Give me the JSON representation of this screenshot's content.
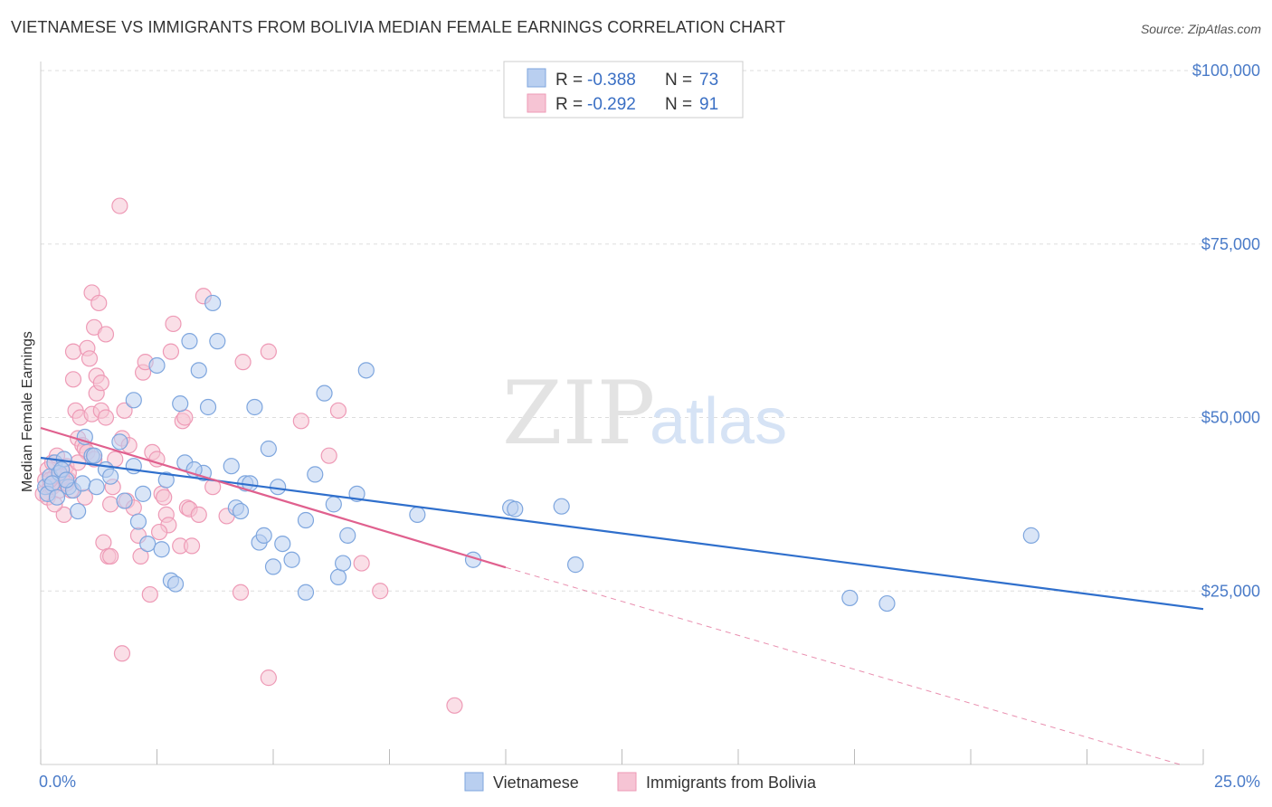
{
  "header": {
    "title": "VIETNAMESE VS IMMIGRANTS FROM BOLIVIA MEDIAN FEMALE EARNINGS CORRELATION CHART",
    "source": "Source: ZipAtlas.com"
  },
  "watermark": {
    "zip": "ZIP",
    "atlas": "atlas"
  },
  "stats_box": {
    "rows": [
      {
        "r_label": "R =",
        "r_value": "-0.388",
        "n_label": "N =",
        "n_value": "73"
      },
      {
        "r_label": "R =",
        "r_value": "-0.292",
        "n_label": "N =",
        "n_value": "91"
      }
    ]
  },
  "colors": {
    "blue_fill": "#b9cff0",
    "blue_stroke": "#7ea6de",
    "blue_line": "#2f6fcc",
    "pink_fill": "#f6c4d4",
    "pink_stroke": "#ee9ab6",
    "pink_line": "#e0608e",
    "accent_text": "#3a6fc4",
    "grid": "#dddddd"
  },
  "chart_data": {
    "type": "scatter",
    "title": "VIETNAMESE VS IMMIGRANTS FROM BOLIVIA MEDIAN FEMALE EARNINGS CORRELATION CHART",
    "xlabel": "",
    "ylabel": "Median Female Earnings",
    "xlim": [
      0,
      25
    ],
    "ylim": [
      0,
      105000
    ],
    "x_tick_labels": [
      "0.0%",
      "25.0%"
    ],
    "y_ticks": [
      25000,
      50000,
      75000,
      100000
    ],
    "y_tick_labels": [
      "$25,000",
      "$50,000",
      "$75,000",
      "$100,000"
    ],
    "grid": true,
    "legend_position": "bottom-center",
    "series": [
      {
        "name": "Vietnamese",
        "color": "#7ea6de",
        "r": -0.388,
        "n": 73,
        "trend": {
          "x": [
            0,
            25
          ],
          "y": [
            44200,
            22400
          ]
        },
        "points": [
          [
            0.1,
            40000
          ],
          [
            0.15,
            39000
          ],
          [
            0.2,
            41500
          ],
          [
            0.3,
            43500
          ],
          [
            0.4,
            42000
          ],
          [
            0.5,
            44000
          ],
          [
            0.6,
            40000
          ],
          [
            0.7,
            39500
          ],
          [
            0.8,
            36500
          ],
          [
            0.9,
            40500
          ],
          [
            0.95,
            47200
          ],
          [
            1.1,
            44500
          ],
          [
            1.15,
            44500
          ],
          [
            1.4,
            42500
          ],
          [
            1.7,
            46500
          ],
          [
            1.8,
            38000
          ],
          [
            2.0,
            43000
          ],
          [
            2.0,
            52500
          ],
          [
            2.1,
            35000
          ],
          [
            2.3,
            31800
          ],
          [
            2.5,
            57500
          ],
          [
            2.6,
            31000
          ],
          [
            2.7,
            41000
          ],
          [
            2.8,
            26500
          ],
          [
            2.9,
            26000
          ],
          [
            3.0,
            52000
          ],
          [
            3.1,
            43500
          ],
          [
            3.2,
            61000
          ],
          [
            3.4,
            56800
          ],
          [
            3.5,
            42000
          ],
          [
            3.6,
            51500
          ],
          [
            3.7,
            66500
          ],
          [
            3.8,
            61000
          ],
          [
            4.1,
            43000
          ],
          [
            4.2,
            37000
          ],
          [
            4.3,
            36500
          ],
          [
            4.4,
            40500
          ],
          [
            4.5,
            40500
          ],
          [
            4.6,
            51500
          ],
          [
            4.7,
            32000
          ],
          [
            4.8,
            33000
          ],
          [
            4.9,
            45500
          ],
          [
            5.0,
            28500
          ],
          [
            5.1,
            40000
          ],
          [
            5.2,
            31800
          ],
          [
            5.4,
            29500
          ],
          [
            5.7,
            24800
          ],
          [
            5.7,
            35200
          ],
          [
            5.9,
            41800
          ],
          [
            6.1,
            53500
          ],
          [
            6.3,
            37500
          ],
          [
            6.4,
            27000
          ],
          [
            6.5,
            29000
          ],
          [
            6.6,
            33000
          ],
          [
            6.8,
            39000
          ],
          [
            7.0,
            56800
          ],
          [
            8.1,
            36000
          ],
          [
            9.3,
            29500
          ],
          [
            10.1,
            37000
          ],
          [
            10.2,
            36800
          ],
          [
            11.2,
            37200
          ],
          [
            11.5,
            28800
          ],
          [
            17.4,
            24000
          ],
          [
            18.2,
            23200
          ],
          [
            21.3,
            33000
          ],
          [
            0.25,
            40500
          ],
          [
            0.45,
            42500
          ],
          [
            0.55,
            41000
          ],
          [
            1.2,
            40000
          ],
          [
            1.5,
            41500
          ],
          [
            2.2,
            39000
          ],
          [
            3.3,
            42500
          ],
          [
            0.35,
            38500
          ]
        ]
      },
      {
        "name": "Immigrants from Bolivia",
        "color": "#ee9ab6",
        "r": -0.292,
        "n": 91,
        "trend": {
          "x": [
            0,
            10
          ],
          "y": [
            48500,
            28400
          ]
        },
        "trend_ext": {
          "x": [
            10,
            24.5
          ],
          "y": [
            28400,
            0
          ]
        },
        "points": [
          [
            0.05,
            39000
          ],
          [
            0.1,
            41000
          ],
          [
            0.15,
            42500
          ],
          [
            0.2,
            40000
          ],
          [
            0.25,
            43500
          ],
          [
            0.3,
            41500
          ],
          [
            0.35,
            44500
          ],
          [
            0.4,
            42000
          ],
          [
            0.45,
            40500
          ],
          [
            0.5,
            36000
          ],
          [
            0.55,
            43000
          ],
          [
            0.6,
            41000
          ],
          [
            0.65,
            39500
          ],
          [
            0.7,
            55500
          ],
          [
            0.7,
            59500
          ],
          [
            0.75,
            51000
          ],
          [
            0.8,
            47000
          ],
          [
            0.85,
            50000
          ],
          [
            0.9,
            46000
          ],
          [
            0.95,
            45500
          ],
          [
            1.0,
            45000
          ],
          [
            1.0,
            60000
          ],
          [
            1.05,
            58500
          ],
          [
            1.1,
            50500
          ],
          [
            1.1,
            68000
          ],
          [
            1.15,
            63000
          ],
          [
            1.2,
            56000
          ],
          [
            1.2,
            53500
          ],
          [
            1.25,
            66500
          ],
          [
            1.3,
            55000
          ],
          [
            1.3,
            51000
          ],
          [
            1.35,
            32000
          ],
          [
            1.4,
            62000
          ],
          [
            1.45,
            30000
          ],
          [
            1.5,
            37500
          ],
          [
            1.55,
            40000
          ],
          [
            1.6,
            44000
          ],
          [
            1.7,
            80500
          ],
          [
            1.75,
            47000
          ],
          [
            1.8,
            51000
          ],
          [
            1.85,
            38000
          ],
          [
            1.9,
            46000
          ],
          [
            2.0,
            37000
          ],
          [
            2.1,
            33000
          ],
          [
            2.15,
            30000
          ],
          [
            2.2,
            56500
          ],
          [
            2.25,
            58000
          ],
          [
            2.35,
            24500
          ],
          [
            2.4,
            45000
          ],
          [
            2.5,
            44000
          ],
          [
            2.6,
            39000
          ],
          [
            2.65,
            38500
          ],
          [
            2.7,
            36000
          ],
          [
            2.75,
            34500
          ],
          [
            2.8,
            59500
          ],
          [
            2.85,
            63500
          ],
          [
            3.0,
            31500
          ],
          [
            3.05,
            49500
          ],
          [
            3.1,
            50000
          ],
          [
            3.15,
            37000
          ],
          [
            3.2,
            36800
          ],
          [
            3.25,
            31500
          ],
          [
            3.4,
            36000
          ],
          [
            3.5,
            67500
          ],
          [
            3.7,
            40000
          ],
          [
            4.0,
            35800
          ],
          [
            4.3,
            24800
          ],
          [
            4.35,
            58000
          ],
          [
            4.9,
            59500
          ],
          [
            4.9,
            12500
          ],
          [
            5.6,
            49500
          ],
          [
            6.2,
            44500
          ],
          [
            6.4,
            51000
          ],
          [
            6.9,
            29000
          ],
          [
            7.3,
            25000
          ],
          [
            8.9,
            8500
          ],
          [
            0.15,
            38500
          ],
          [
            0.25,
            40000
          ],
          [
            0.4,
            39500
          ],
          [
            0.6,
            42000
          ],
          [
            0.8,
            43500
          ],
          [
            1.15,
            44000
          ],
          [
            1.5,
            30000
          ],
          [
            1.75,
            16000
          ],
          [
            2.55,
            33500
          ],
          [
            0.3,
            37500
          ],
          [
            0.45,
            41500
          ],
          [
            0.55,
            40500
          ],
          [
            0.95,
            38500
          ],
          [
            1.4,
            50000
          ],
          [
            0.2,
            41000
          ]
        ]
      }
    ]
  },
  "legend": {
    "items": [
      {
        "label": "Vietnamese"
      },
      {
        "label": "Immigrants from Bolivia"
      }
    ]
  }
}
